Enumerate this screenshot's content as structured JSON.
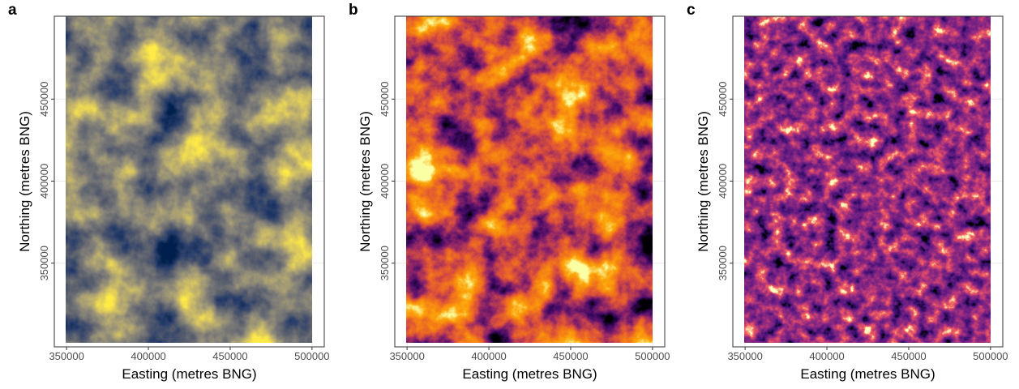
{
  "chart_data": [
    {
      "type": "raster",
      "label": "a",
      "xlabel": "Easting (metres BNG)",
      "ylabel": "Northing (metres BNG)",
      "xlim": [
        342500,
        507500
      ],
      "ylim": [
        299000,
        500500
      ],
      "xticks": [
        350000,
        400000,
        450000,
        500000
      ],
      "yticks": [
        350000,
        400000,
        450000
      ],
      "grid": true,
      "colormap": [
        "#00204d",
        "#2b3f6b",
        "#575d6d",
        "#7c7b78",
        "#a69d75",
        "#d3c164",
        "#ffea46"
      ]
    },
    {
      "type": "raster",
      "label": "b",
      "xlabel": "Easting (metres BNG)",
      "ylabel": "Northing (metres BNG)",
      "xlim": [
        342500,
        507500
      ],
      "ylim": [
        299000,
        500500
      ],
      "xticks": [
        350000,
        400000,
        450000,
        500000
      ],
      "yticks": [
        350000,
        400000,
        450000
      ],
      "grid": true,
      "colormap": [
        "#000004",
        "#420a68",
        "#932667",
        "#dd513a",
        "#f57d15",
        "#fca50a",
        "#fcffa4"
      ]
    },
    {
      "type": "raster",
      "label": "c",
      "xlabel": "Easting (metres BNG)",
      "ylabel": "Northing (metres BNG)",
      "xlim": [
        342500,
        507500
      ],
      "ylim": [
        299000,
        500500
      ],
      "xticks": [
        350000,
        400000,
        450000,
        500000
      ],
      "yticks": [
        350000,
        400000,
        450000
      ],
      "grid": true,
      "colormap": [
        "#000004",
        "#3b0f70",
        "#6a1d83",
        "#8c2981",
        "#c43c75",
        "#f1605d",
        "#fcfdbf"
      ]
    }
  ]
}
